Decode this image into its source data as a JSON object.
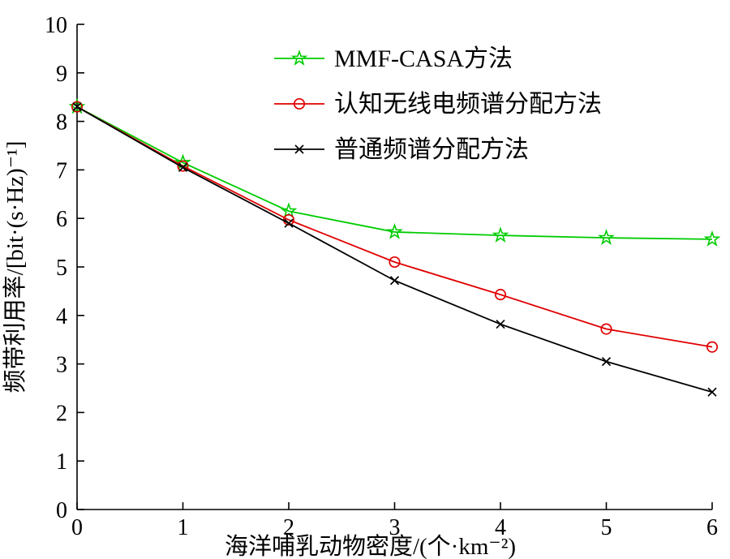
{
  "chart_data": {
    "type": "line",
    "title": "",
    "xlabel": "海洋哺乳动物密度/(个·km⁻²)",
    "ylabel": "频带利用率/[bit·(s·Hz)⁻¹]",
    "xlim": [
      0,
      6
    ],
    "ylim": [
      0,
      10
    ],
    "xticks": [
      0,
      1,
      2,
      3,
      4,
      5,
      6
    ],
    "yticks": [
      0,
      1,
      2,
      3,
      4,
      5,
      6,
      7,
      8,
      9,
      10
    ],
    "grid": false,
    "legend_position": "upper-center",
    "x": [
      0,
      1,
      2,
      3,
      4,
      5,
      6
    ],
    "series": [
      {
        "name": "MMF-CASA方法",
        "color": "#00cc00",
        "marker": "star",
        "values": [
          8.3,
          7.15,
          6.15,
          5.72,
          5.65,
          5.6,
          5.57
        ]
      },
      {
        "name": "认知无线电频谱分配方法",
        "color": "#e00000",
        "marker": "circle",
        "values": [
          8.3,
          7.08,
          5.97,
          5.1,
          4.43,
          3.72,
          3.35
        ]
      },
      {
        "name": "普通频谱分配方法",
        "color": "#000000",
        "marker": "x",
        "values": [
          8.3,
          7.05,
          5.9,
          4.72,
          3.82,
          3.05,
          2.42
        ]
      }
    ]
  }
}
